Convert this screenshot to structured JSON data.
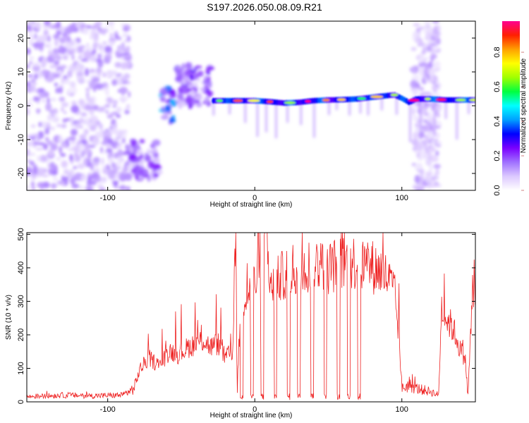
{
  "title": "S197.2026.050.08.09.R21",
  "chart_data": [
    {
      "type": "heatmap",
      "name": "spectrogram",
      "xlabel": "Height of straight line (km)",
      "ylabel": "Frequency (Hz)",
      "xlim": [
        -155,
        150
      ],
      "ylim": [
        -25,
        25
      ],
      "x_ticks": [
        -100,
        0,
        100
      ],
      "y_ticks": [
        20,
        10,
        0,
        -10,
        -20
      ],
      "colorbar": {
        "label": "Normalized spectral amplitude",
        "range": [
          0.0,
          0.98
        ],
        "ticks": [
          0.0,
          0.2,
          0.4,
          0.6,
          0.8
        ],
        "colors": [
          "#ffffff",
          "#dcc8ff",
          "#a070ff",
          "#7a00ff",
          "#0000ff",
          "#00a0ff",
          "#00ffff",
          "#00ff40",
          "#a0ff00",
          "#ffff00",
          "#ffa000",
          "#ff2000",
          "#ff0090"
        ]
      },
      "regions": [
        {
          "x": [
            -155,
            -85
          ],
          "f": [
            -25,
            25
          ],
          "amp": 0.08,
          "desc": "scattered noise"
        },
        {
          "x": [
            -87,
            -65
          ],
          "f": [
            -22,
            -10
          ],
          "amp": 0.12
        },
        {
          "x": [
            -64,
            -55
          ],
          "f": [
            -5,
            5
          ],
          "amp": 0.22
        },
        {
          "x": [
            -53,
            -30
          ],
          "f": [
            0,
            12
          ],
          "amp": 0.14
        },
        {
          "x": [
            -30,
            150
          ],
          "f": [
            0,
            3
          ],
          "amp": 0.95,
          "desc": "narrow line near 1-3 Hz"
        },
        {
          "x": [
            108,
            125
          ],
          "f": [
            -25,
            25
          ],
          "amp": 0.07
        }
      ],
      "line_trace": {
        "x": [
          -28,
          -10,
          0,
          10,
          20,
          30,
          40,
          50,
          60,
          70,
          80,
          90,
          95,
          100,
          105,
          110,
          115,
          120,
          130,
          140,
          150
        ],
        "f": [
          1.5,
          1.5,
          1.5,
          1.2,
          0.8,
          1.0,
          1.5,
          1.7,
          1.8,
          2.0,
          2.5,
          3.0,
          3.2,
          2.2,
          1.0,
          2.0,
          2.0,
          2.0,
          1.7,
          1.7,
          1.7
        ]
      }
    },
    {
      "type": "line",
      "name": "snr",
      "xlabel": "Height of straight line (km)",
      "ylabel": "SNR (10 * v/v)",
      "xlim": [
        -155,
        150
      ],
      "ylim": [
        0,
        505
      ],
      "x_ticks": [
        -100,
        0,
        100
      ],
      "y_ticks": [
        0,
        100,
        200,
        300,
        400,
        500
      ],
      "color": "#ee2222",
      "x": [
        -155,
        -130,
        -110,
        -90,
        -82,
        -78,
        -72,
        -65,
        -58,
        -52,
        -45,
        -40,
        -35,
        -30,
        -25,
        -20,
        -15,
        -13,
        -12,
        -10,
        -8,
        -5,
        -2,
        0,
        5,
        8,
        10,
        15,
        20,
        25,
        30,
        35,
        40,
        45,
        50,
        55,
        60,
        65,
        70,
        75,
        80,
        85,
        90,
        95,
        98,
        100,
        105,
        110,
        115,
        120,
        125,
        127,
        130,
        135,
        140,
        143,
        145,
        148,
        150
      ],
      "y": [
        15,
        20,
        18,
        20,
        40,
        90,
        120,
        100,
        140,
        130,
        150,
        160,
        170,
        150,
        160,
        120,
        140,
        500,
        30,
        220,
        280,
        300,
        320,
        330,
        340,
        480,
        300,
        330,
        350,
        360,
        360,
        370,
        380,
        380,
        370,
        375,
        380,
        385,
        380,
        375,
        370,
        360,
        340,
        300,
        180,
        40,
        50,
        40,
        35,
        30,
        20,
        260,
        230,
        200,
        140,
        120,
        20,
        300,
        290
      ]
    }
  ]
}
